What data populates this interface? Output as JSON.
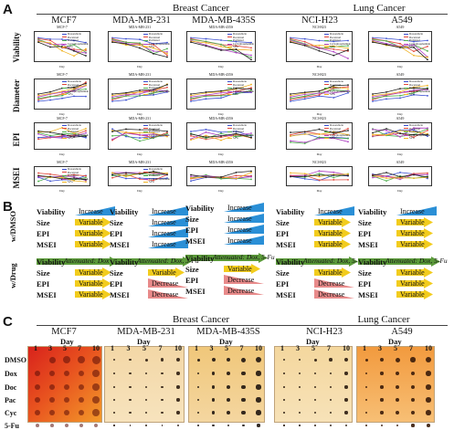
{
  "panel_a": {
    "letter": "A",
    "groups": [
      {
        "label": "Breast Cancer"
      },
      {
        "label": "Lung Cancer"
      }
    ],
    "cell_lines": [
      "MCF7",
      "MDA-MB-231",
      "MDA-MB-435S",
      "NCI-H23",
      "A549"
    ],
    "row_labels": [
      "Viability",
      "Diameter",
      "EPI",
      "MSEI"
    ],
    "mini_titles": {
      "viability": [
        "MCF-7",
        "MDA-MB-231",
        "MDA-MB-435S",
        "NCI-H23",
        "A549"
      ],
      "diameter": [
        "MCF-7",
        "MDA-MB-231",
        "MDA-MB-435S",
        "NCI-H23",
        "A549"
      ],
      "epi": [
        "MCF-7",
        "MDA-MB-231",
        "MDA-MB-435S",
        "NCI-H23",
        "A549"
      ],
      "msei": [
        "MCF-7",
        "MDA-MB-231",
        "MDA-MB-435S",
        "NCI-H23",
        "A549"
      ]
    },
    "mini_x_label": "Day",
    "legend_entries": [
      "Doxorubicin",
      "Docetaxel",
      "Paclitaxel",
      "Cyclophosphamide",
      "5-Fu"
    ],
    "series_colors": [
      "#3b4fd1",
      "#e2473b",
      "#4cae4c",
      "#b042c4",
      "#f0b323",
      "#222222"
    ]
  },
  "panel_b": {
    "letter": "B",
    "row_labels": [
      "w/DMSO",
      "w/Drug"
    ],
    "metrics": [
      "Viability",
      "Size",
      "EPI",
      "MSEI"
    ],
    "dmso": [
      [
        "Increase",
        "Variable",
        "Variable",
        "Variable"
      ],
      [
        "Increase",
        "Increase",
        "Increase",
        "Increase"
      ],
      [
        "Increase",
        "Increase",
        "Increase",
        "Increase"
      ],
      [
        "Increase",
        "Variable",
        "Variable",
        "Variable"
      ],
      [
        "Increase",
        "Variable",
        "Variable",
        "Variable"
      ]
    ],
    "drug_heads": [
      "Attenuated: Dox",
      "Attenuated: Dox, 5-Fu",
      "Attenuated: Dox, 5-Fu",
      "Attenuated: Dox, 5-Fu",
      "Attenuated: Dox, 5-Fu"
    ],
    "drug": [
      [
        "Variable",
        "Variable",
        "Variable"
      ],
      [
        "Variable",
        "Decrease",
        "Decrease"
      ],
      [
        "Variable",
        "Decrease",
        "Decrease"
      ],
      [
        "Variable",
        "Decrease",
        "Decrease"
      ],
      [
        "Variable",
        "Variable",
        "Variable"
      ]
    ]
  },
  "panel_c": {
    "letter": "C",
    "groups": [
      {
        "label": "Breast Cancer"
      },
      {
        "label": "Lung Cancer"
      }
    ],
    "cell_lines": [
      "MCF7",
      "MDA-MB-231",
      "MDA-MB-435S",
      "NCI-H23",
      "A549"
    ],
    "day_label": "Day",
    "days": [
      "1",
      "3",
      "5",
      "7",
      "10"
    ],
    "row_labels": [
      "DMSO",
      "Dox",
      "Doc",
      "Pac",
      "Cyc",
      "5-Fu"
    ]
  },
  "colors": {
    "blue_arrow": "#2a8fd6",
    "yellow_arrow": "#f2cc1d",
    "red_arrow": "#e88a8a",
    "green_head": "#5b9a3a"
  }
}
